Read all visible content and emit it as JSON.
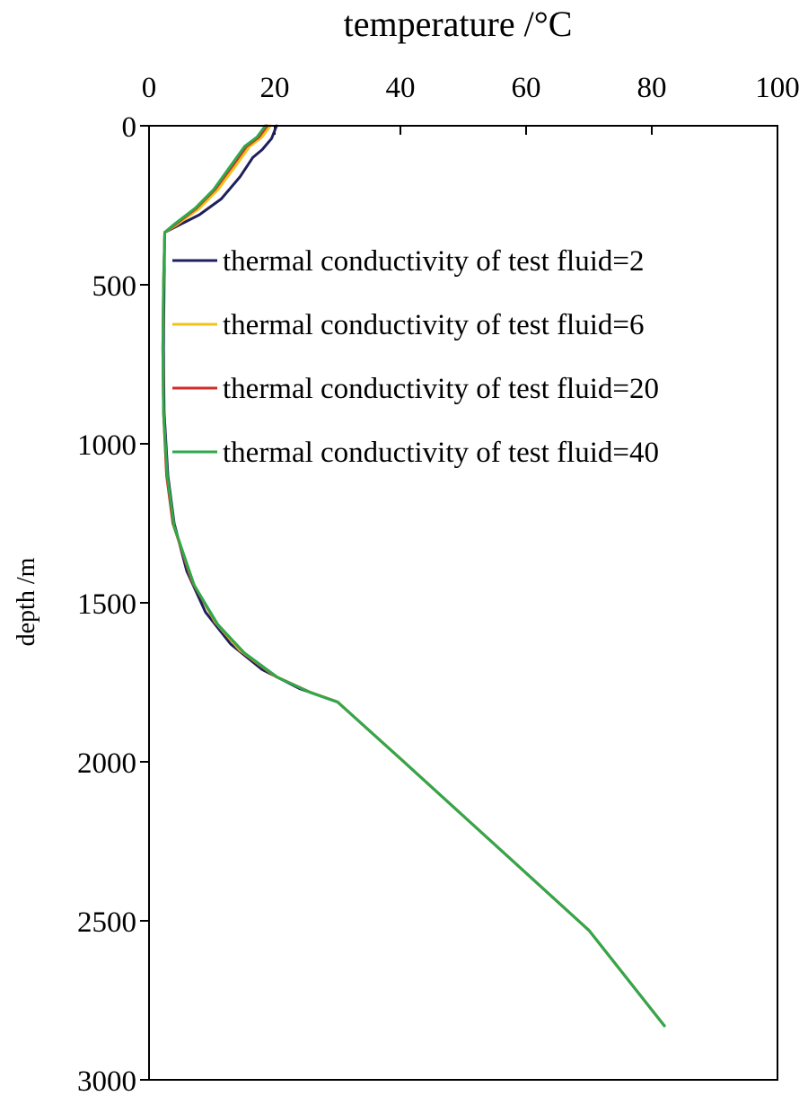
{
  "chart_data": {
    "type": "line",
    "title": "",
    "xlabel": "temperature /°C",
    "ylabel": "depth /m",
    "xlim": [
      0,
      100
    ],
    "ylim": [
      0,
      3000
    ],
    "y_inverted": true,
    "x_axis_position": "top",
    "grid": false,
    "legend_position": "upper-middle",
    "x_ticks": [
      "0",
      "20",
      "40",
      "60",
      "80",
      "100"
    ],
    "y_ticks": [
      "0",
      "500",
      "1000",
      "1500",
      "2000",
      "2500",
      "3000"
    ],
    "series": [
      {
        "name": "thermal conductivity of test fluid=2",
        "color": "#1f1f5c",
        "points": [
          [
            20.3,
            0
          ],
          [
            19.5,
            40
          ],
          [
            18.0,
            75
          ],
          [
            16.5,
            100
          ],
          [
            14.5,
            160
          ],
          [
            11.5,
            230
          ],
          [
            8.0,
            280
          ],
          [
            4.0,
            320
          ],
          [
            2.5,
            335
          ],
          [
            2.4,
            500
          ],
          [
            2.3,
            700
          ],
          [
            2.4,
            900
          ],
          [
            3.0,
            1100
          ],
          [
            4.0,
            1250
          ],
          [
            6.0,
            1400
          ],
          [
            9.0,
            1530
          ],
          [
            13.0,
            1630
          ],
          [
            18.0,
            1710
          ],
          [
            24.0,
            1770
          ],
          [
            30.0,
            1812
          ],
          [
            40.0,
            1990
          ],
          [
            50.0,
            2170
          ],
          [
            60.0,
            2350
          ],
          [
            70.0,
            2530
          ],
          [
            82.0,
            2830
          ]
        ]
      },
      {
        "name": "thermal conductivity of test fluid=6",
        "color": "#f2c318",
        "points": [
          [
            19.3,
            0
          ],
          [
            18.0,
            35
          ],
          [
            16.0,
            65
          ],
          [
            14.0,
            120
          ],
          [
            11.0,
            200
          ],
          [
            8.0,
            260
          ],
          [
            4.5,
            310
          ],
          [
            2.5,
            335
          ],
          [
            2.3,
            500
          ],
          [
            2.2,
            700
          ],
          [
            2.3,
            900
          ],
          [
            2.8,
            1100
          ],
          [
            3.8,
            1250
          ],
          [
            6.8,
            1430
          ],
          [
            10.5,
            1560
          ],
          [
            14.5,
            1650
          ],
          [
            20.0,
            1730
          ],
          [
            25.5,
            1780
          ],
          [
            30.0,
            1812
          ],
          [
            40.0,
            1990
          ],
          [
            50.0,
            2170
          ],
          [
            60.0,
            2350
          ],
          [
            70.0,
            2530
          ],
          [
            82.0,
            2830
          ]
        ]
      },
      {
        "name": "thermal conductivity of test fluid=20",
        "color": "#d12b2b",
        "points": [
          [
            18.8,
            0
          ],
          [
            17.5,
            35
          ],
          [
            15.5,
            65
          ],
          [
            13.5,
            120
          ],
          [
            10.5,
            200
          ],
          [
            7.5,
            260
          ],
          [
            4.2,
            310
          ],
          [
            2.5,
            335
          ],
          [
            2.3,
            500
          ],
          [
            2.2,
            700
          ],
          [
            2.3,
            900
          ],
          [
            2.8,
            1100
          ],
          [
            3.8,
            1250
          ],
          [
            7.0,
            1440
          ],
          [
            10.8,
            1565
          ],
          [
            15.0,
            1655
          ],
          [
            20.3,
            1733
          ],
          [
            25.7,
            1782
          ],
          [
            30.0,
            1812
          ],
          [
            40.0,
            1990
          ],
          [
            50.0,
            2170
          ],
          [
            60.0,
            2350
          ],
          [
            70.0,
            2530
          ],
          [
            82.0,
            2830
          ]
        ]
      },
      {
        "name": "thermal conductivity of test fluid=40",
        "color": "#2eaa4a",
        "points": [
          [
            18.5,
            0
          ],
          [
            17.2,
            35
          ],
          [
            15.2,
            65
          ],
          [
            13.2,
            120
          ],
          [
            10.3,
            200
          ],
          [
            7.3,
            260
          ],
          [
            4.0,
            310
          ],
          [
            2.5,
            335
          ],
          [
            2.3,
            500
          ],
          [
            2.2,
            700
          ],
          [
            2.3,
            900
          ],
          [
            2.9,
            1100
          ],
          [
            4.0,
            1260
          ],
          [
            7.2,
            1445
          ],
          [
            11.0,
            1570
          ],
          [
            15.2,
            1658
          ],
          [
            20.5,
            1735
          ],
          [
            25.8,
            1783
          ],
          [
            30.0,
            1812
          ],
          [
            40.0,
            1990
          ],
          [
            50.0,
            2170
          ],
          [
            60.0,
            2350
          ],
          [
            70.0,
            2530
          ],
          [
            82.0,
            2830
          ]
        ]
      }
    ]
  }
}
